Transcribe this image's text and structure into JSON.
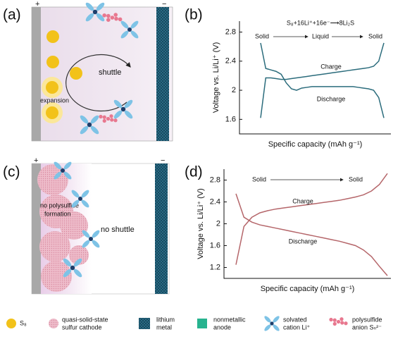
{
  "panels": {
    "a": "(a)",
    "b": "(b)",
    "c": "(c)",
    "d": "(d)"
  },
  "diagram_a": {
    "plus": "+",
    "minus": "−",
    "shuttle": "shuttle",
    "expansion": "expansion"
  },
  "diagram_c": {
    "plus": "+",
    "minus": "−",
    "no_polysulfide": [
      "no polysulfide",
      "formation"
    ],
    "no_shuttle": "no shuttle"
  },
  "chart_data": [
    {
      "type": "line",
      "ylabel": "Voltage vs. Li/Li⁺ (V)",
      "xlabel": "Specific capacity (mAh g⁻¹)",
      "ylim": [
        1.4,
        2.95
      ],
      "yticks": [
        1.6,
        2.0,
        2.4,
        2.8
      ],
      "reaction": "S₈+16Li⁺+16e⁻⟶8Li₂S",
      "states": [
        "Solid",
        "Liquid",
        "Solid"
      ],
      "series": [
        {
          "name": "Charge",
          "color": "#2b6c7c",
          "values": [
            1.62,
            2.17,
            2.17,
            2.16,
            2.15,
            2.15,
            2.16,
            2.17,
            2.18,
            2.19,
            2.2,
            2.21,
            2.22,
            2.23,
            2.24,
            2.25,
            2.26,
            2.27,
            2.28,
            2.29,
            2.3,
            2.31,
            2.33,
            2.4,
            2.65
          ]
        },
        {
          "name": "Discharge",
          "color": "#2b6c7c",
          "values": [
            2.65,
            2.3,
            2.28,
            2.26,
            2.22,
            2.1,
            2.02,
            2.0,
            2.03,
            2.04,
            2.05,
            2.05,
            2.05,
            2.05,
            2.05,
            2.05,
            2.05,
            2.05,
            2.05,
            2.04,
            2.03,
            2.02,
            2.0,
            1.9,
            1.62
          ]
        }
      ]
    },
    {
      "type": "line",
      "ylabel": "Voltage vs. Li/Li⁺ (V)",
      "xlabel": "Specific capacity (mAh g⁻¹)",
      "ylim": [
        1.0,
        3.0
      ],
      "yticks": [
        1.2,
        1.6,
        2.0,
        2.4,
        2.8
      ],
      "states": [
        "Solid",
        "Solid"
      ],
      "series": [
        {
          "name": "Charge",
          "color": "#b5666a",
          "values": [
            1.25,
            1.95,
            2.12,
            2.2,
            2.24,
            2.27,
            2.29,
            2.31,
            2.33,
            2.35,
            2.37,
            2.39,
            2.41,
            2.43,
            2.46,
            2.49,
            2.53,
            2.6,
            2.72,
            2.92
          ]
        },
        {
          "name": "Discharge",
          "color": "#b5666a",
          "values": [
            2.55,
            2.12,
            2.03,
            1.98,
            1.95,
            1.92,
            1.89,
            1.86,
            1.83,
            1.8,
            1.77,
            1.74,
            1.71,
            1.68,
            1.64,
            1.6,
            1.52,
            1.4,
            1.22,
            1.05
          ]
        }
      ]
    }
  ],
  "legend": [
    [
      "S₈"
    ],
    [
      "quasi-solid-state",
      "sulfur cathode"
    ],
    [
      "lithium",
      "metal"
    ],
    [
      "nonmetallic",
      "anode"
    ],
    [
      "solvated",
      "cation Li⁺"
    ],
    [
      "polysulfide",
      "anion Sₙ²⁻"
    ]
  ]
}
